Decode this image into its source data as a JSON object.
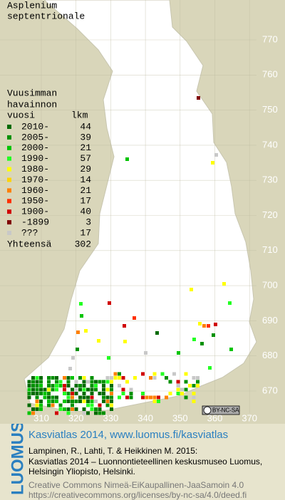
{
  "map": {
    "title": [
      "Asplenium",
      "septentrionale"
    ],
    "yticks": [
      770,
      760,
      750,
      740,
      730,
      720,
      710,
      700,
      690,
      680,
      670
    ],
    "xticks": [
      310,
      320,
      330,
      340,
      350,
      360,
      370
    ],
    "legend": {
      "heading": [
        "Vuusimman",
        "havainnon"
      ],
      "col_year": "vuosi",
      "col_count": "lkm",
      "entries": [
        {
          "label": "2010-",
          "count": 44,
          "color": "#006a00"
        },
        {
          "label": "2005-",
          "count": 39,
          "color": "#009000"
        },
        {
          "label": "2000-",
          "count": 21,
          "color": "#00c400"
        },
        {
          "label": "1990-",
          "count": 57,
          "color": "#22ff22"
        },
        {
          "label": "1980-",
          "count": 29,
          "color": "#ffff00"
        },
        {
          "label": "1970-",
          "count": 14,
          "color": "#ffd400"
        },
        {
          "label": "1960-",
          "count": 21,
          "color": "#ff8000"
        },
        {
          "label": "1950-",
          "count": 17,
          "color": "#ff3000"
        },
        {
          "label": "1900-",
          "count": 40,
          "color": "#d00000"
        },
        {
          "label": "-1899",
          "count": 3,
          "color": "#800000"
        },
        {
          "label": "???",
          "count": 17,
          "color": "#c8c8c8"
        }
      ],
      "total_label": "Yhteensä",
      "total": 302
    },
    "badge": "BY-NC-SA",
    "logo": "LUOMUS",
    "link": "Kasviatlas 2014, www.luomus.fi/kasviatlas",
    "citation": [
      "Lampinen, R., Lahti, T. & Heikkinen M. 2015:",
      "Kasviatlas 2014 – Luonnontieteellinen keskusmuseo Luomus,",
      "Helsingin Yliopisto, Helsinki."
    ],
    "license": [
      "Creative Commons Nimeä-EiKaupallinen-JaaSamoin 4.0",
      "https://creativecommons.org/licenses/by-nc-sa/4.0/deed.fi"
    ]
  }
}
